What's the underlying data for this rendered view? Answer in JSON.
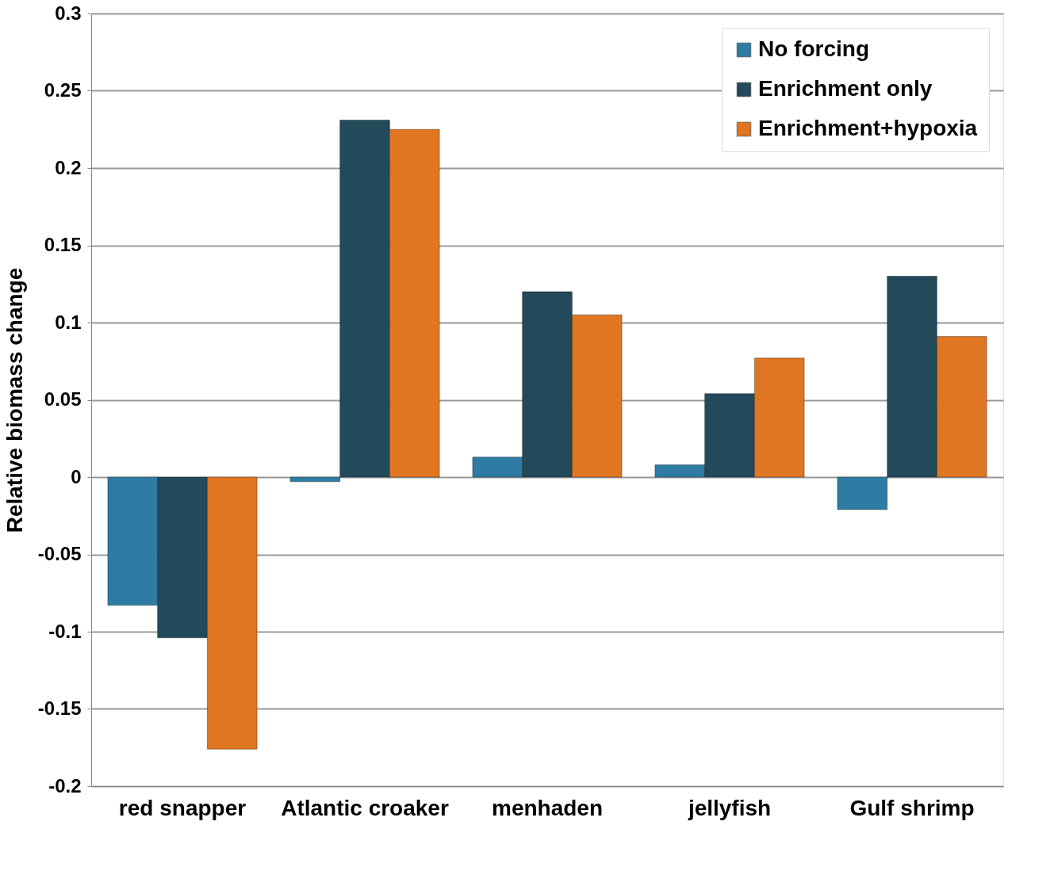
{
  "chart_data": {
    "type": "bar",
    "ylabel": "Relative biomass change",
    "categories": [
      "red snapper",
      "Atlantic croaker",
      "menhaden",
      "jellyfish",
      "Gulf shrimp"
    ],
    "series": [
      {
        "name": "No forcing",
        "color": "#2e7ca3",
        "values": [
          -0.083,
          -0.003,
          0.013,
          0.008,
          -0.021
        ]
      },
      {
        "name": "Enrichment only",
        "color": "#234a5a",
        "values": [
          -0.104,
          0.231,
          0.12,
          0.054,
          0.13
        ]
      },
      {
        "name": "Enrichment+hypoxia",
        "color": "#e07522",
        "values": [
          -0.176,
          0.225,
          0.105,
          0.077,
          0.091
        ]
      }
    ],
    "ylim": [
      -0.2,
      0.3
    ],
    "yticks": [
      -0.2,
      -0.15,
      -0.1,
      -0.05,
      0,
      0.05,
      0.1,
      0.15,
      0.2,
      0.25,
      0.3
    ],
    "grid": "y",
    "legend": "top right"
  }
}
